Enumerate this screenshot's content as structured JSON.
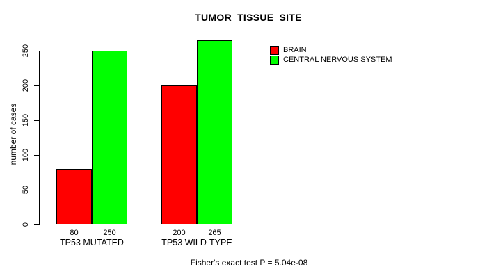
{
  "chart_data": {
    "type": "bar",
    "title": "TUMOR_TISSUE_SITE",
    "ylabel": "number of cases",
    "xlabel": "",
    "categories": [
      "TP53 MUTATED",
      "TP53 WILD-TYPE"
    ],
    "series": [
      {
        "name": "BRAIN",
        "color": "#ff0000",
        "values": [
          80,
          200
        ]
      },
      {
        "name": "CENTRAL NERVOUS SYSTEM",
        "color": "#00ff00",
        "values": [
          250,
          265
        ]
      }
    ],
    "bar_value_labels": [
      [
        80,
        200
      ],
      [
        250,
        265
      ]
    ],
    "yticks": [
      0,
      50,
      100,
      150,
      200,
      250
    ],
    "ylim": [
      0,
      265
    ],
    "grid": false,
    "legend_position": "top-right",
    "footer": "Fisher's exact test P = 5.04e-08"
  },
  "colors": {
    "brain": "#ff0000",
    "central_nervous_system": "#00ff00",
    "axis": "#000000",
    "background": "#ffffff"
  }
}
